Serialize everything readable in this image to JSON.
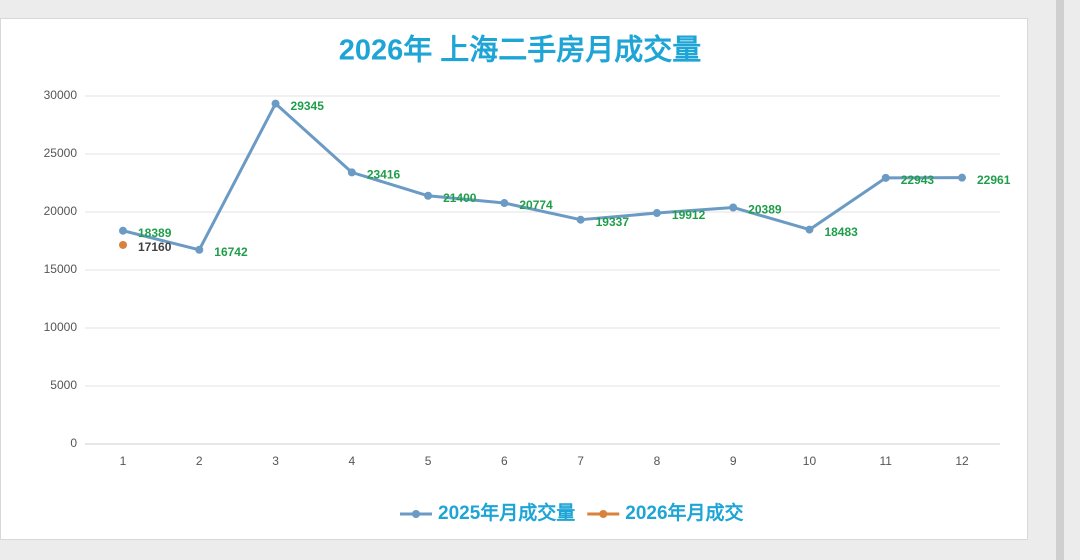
{
  "chart_data": {
    "type": "line",
    "title": "2026年 上海二手房月成交量",
    "categories": [
      "1",
      "2",
      "3",
      "4",
      "5",
      "6",
      "7",
      "8",
      "9",
      "10",
      "11",
      "12"
    ],
    "series": [
      {
        "name": "2025年月成交量",
        "color": "#6b9ac4",
        "label_color": "#1f9e4a",
        "values": [
          18389,
          16742,
          29345,
          23416,
          21400,
          20774,
          19337,
          19912,
          20389,
          18483,
          22943,
          22961
        ]
      },
      {
        "name": "2026年月成交",
        "color": "#d9823b",
        "label_color": "#404040",
        "values": [
          17160,
          null,
          null,
          null,
          null,
          null,
          null,
          null,
          null,
          null,
          null,
          null
        ]
      }
    ],
    "ylim": [
      0,
      30000
    ],
    "yticks": [
      0,
      5000,
      10000,
      15000,
      20000,
      25000,
      30000
    ],
    "grid": true,
    "legend": "bottom"
  }
}
